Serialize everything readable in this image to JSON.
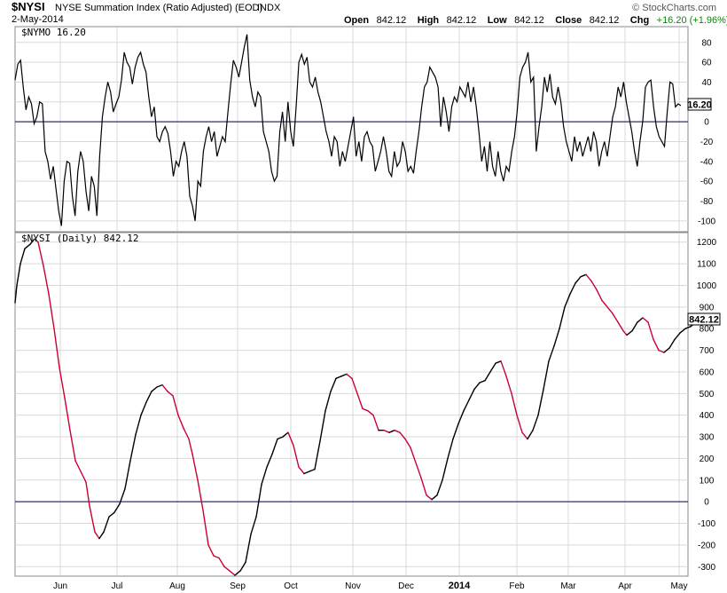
{
  "header": {
    "symbol": "$NYSI",
    "name": "NYSE Summation Index (Ratio Adjusted) (EOD)",
    "exchange": "INDX",
    "date": "2-May-2014",
    "watermark": "© StockCharts.com",
    "open_label": "Open",
    "open": "842.12",
    "high_label": "High",
    "high": "842.12",
    "low_label": "Low",
    "low": "842.12",
    "close_label": "Close",
    "close": "842.12",
    "chg_label": "Chg",
    "chg": "+16.20 (+1.96%)"
  },
  "colors": {
    "line": "#000000",
    "declining": "#cc0033",
    "zero_line": "#000066",
    "grid": "#d9d9d9",
    "chg_positive": "#0a8a0a"
  },
  "chart_data": [
    {
      "type": "line",
      "label": "$NYMO 16.20",
      "series": [
        {
          "name": "$NYMO",
          "last_value": "16.20"
        }
      ],
      "ylim": [
        -110,
        95
      ],
      "ytick_values": [
        80,
        60,
        40,
        20,
        0,
        -20,
        -40,
        -60,
        -80,
        -100
      ],
      "zero_line": true,
      "grid": true,
      "values": [
        42,
        58,
        62,
        35,
        12,
        25,
        18,
        -2,
        5,
        20,
        18,
        -30,
        -40,
        -58,
        -45,
        -68,
        -90,
        -105,
        -60,
        -40,
        -42,
        -75,
        -95,
        -50,
        -30,
        -40,
        -70,
        -90,
        -55,
        -65,
        -95,
        -35,
        5,
        25,
        40,
        30,
        10,
        18,
        25,
        42,
        70,
        60,
        55,
        38,
        55,
        65,
        70,
        58,
        50,
        25,
        5,
        15,
        -15,
        -20,
        -10,
        -5,
        -12,
        -30,
        -55,
        -40,
        -45,
        -30,
        -20,
        -35,
        -75,
        -85,
        -100,
        -60,
        -65,
        -30,
        -15,
        -5,
        -20,
        -10,
        -35,
        -25,
        -15,
        -20,
        10,
        38,
        62,
        55,
        45,
        60,
        75,
        88,
        42,
        25,
        15,
        30,
        25,
        -10,
        -20,
        -30,
        -50,
        -60,
        -55,
        -10,
        10,
        -20,
        20,
        -10,
        -25,
        15,
        60,
        68,
        58,
        65,
        40,
        35,
        45,
        30,
        20,
        5,
        -10,
        -20,
        -35,
        -15,
        -20,
        -45,
        -30,
        -40,
        -25,
        -10,
        5,
        -35,
        -20,
        -40,
        -15,
        -10,
        -20,
        -25,
        -50,
        -40,
        -30,
        -15,
        -30,
        -50,
        -55,
        -30,
        -45,
        -40,
        -20,
        -30,
        -50,
        -45,
        -52,
        -30,
        -10,
        15,
        35,
        40,
        55,
        50,
        45,
        35,
        -5,
        25,
        10,
        -10,
        15,
        25,
        20,
        35,
        30,
        25,
        40,
        20,
        35,
        15,
        -10,
        -40,
        -25,
        -50,
        -20,
        -45,
        -55,
        -30,
        -50,
        -60,
        -45,
        -50,
        -30,
        -15,
        10,
        45,
        55,
        60,
        70,
        40,
        45,
        -30,
        -5,
        15,
        45,
        30,
        48,
        25,
        18,
        35,
        20,
        -5,
        -20,
        -30,
        -40,
        -15,
        -30,
        -20,
        -35,
        -25,
        -15,
        -30,
        -10,
        -20,
        -45,
        -30,
        -20,
        -35,
        -15,
        5,
        15,
        35,
        25,
        40,
        20,
        5,
        -10,
        -30,
        -45,
        -20,
        0,
        35,
        40,
        42,
        15,
        -5,
        -15,
        -20,
        -25,
        10,
        40,
        38,
        15,
        18,
        16.2
      ]
    },
    {
      "type": "line",
      "label": "$NYSI (Daily) 842.12",
      "series": [
        {
          "name": "$NYSI (Daily)",
          "last_value": "842.12"
        }
      ],
      "ylim": [
        -340,
        1240
      ],
      "ytick_values": [
        1200,
        1100,
        1000,
        900,
        800,
        700,
        600,
        500,
        400,
        300,
        200,
        100,
        0,
        -100,
        -200,
        -300
      ],
      "zero_line": true,
      "grid": true,
      "x_labels": [
        "Jun",
        "Jul",
        "Aug",
        "Sep",
        "Oct",
        "Nov",
        "Dec",
        "2014",
        "Feb",
        "Mar",
        "Apr",
        "May"
      ],
      "anchor_points": [
        [
          0,
          920
        ],
        [
          2,
          1000
        ],
        [
          6,
          1100
        ],
        [
          11,
          1170
        ],
        [
          17,
          1190
        ],
        [
          22,
          1215
        ],
        [
          26,
          1200
        ],
        [
          32,
          1090
        ],
        [
          38,
          960
        ],
        [
          44,
          800
        ],
        [
          50,
          620
        ],
        [
          56,
          480
        ],
        [
          62,
          330
        ],
        [
          68,
          190
        ],
        [
          74,
          140
        ],
        [
          80,
          90
        ],
        [
          84,
          -20
        ],
        [
          90,
          -140
        ],
        [
          95,
          -170
        ],
        [
          100,
          -140
        ],
        [
          106,
          -70
        ],
        [
          112,
          -50
        ],
        [
          118,
          -10
        ],
        [
          124,
          60
        ],
        [
          130,
          190
        ],
        [
          136,
          310
        ],
        [
          142,
          400
        ],
        [
          148,
          460
        ],
        [
          154,
          510
        ],
        [
          160,
          530
        ],
        [
          166,
          540
        ],
        [
          172,
          510
        ],
        [
          178,
          490
        ],
        [
          184,
          400
        ],
        [
          190,
          340
        ],
        [
          196,
          290
        ],
        [
          200,
          220
        ],
        [
          206,
          100
        ],
        [
          212,
          -40
        ],
        [
          218,
          -200
        ],
        [
          224,
          -250
        ],
        [
          230,
          -260
        ],
        [
          236,
          -300
        ],
        [
          242,
          -320
        ],
        [
          248,
          -340
        ],
        [
          254,
          -320
        ],
        [
          260,
          -280
        ],
        [
          266,
          -150
        ],
        [
          272,
          -70
        ],
        [
          278,
          80
        ],
        [
          284,
          160
        ],
        [
          290,
          220
        ],
        [
          296,
          290
        ],
        [
          302,
          300
        ],
        [
          308,
          320
        ],
        [
          314,
          260
        ],
        [
          320,
          160
        ],
        [
          326,
          130
        ],
        [
          332,
          140
        ],
        [
          338,
          150
        ],
        [
          344,
          280
        ],
        [
          350,
          420
        ],
        [
          356,
          510
        ],
        [
          362,
          570
        ],
        [
          368,
          580
        ],
        [
          374,
          590
        ],
        [
          380,
          570
        ],
        [
          386,
          500
        ],
        [
          392,
          430
        ],
        [
          398,
          420
        ],
        [
          404,
          400
        ],
        [
          410,
          330
        ],
        [
          416,
          330
        ],
        [
          422,
          320
        ],
        [
          428,
          330
        ],
        [
          434,
          320
        ],
        [
          440,
          290
        ],
        [
          446,
          250
        ],
        [
          452,
          180
        ],
        [
          458,
          110
        ],
        [
          464,
          30
        ],
        [
          470,
          10
        ],
        [
          476,
          30
        ],
        [
          482,
          100
        ],
        [
          488,
          200
        ],
        [
          494,
          290
        ],
        [
          500,
          360
        ],
        [
          506,
          420
        ],
        [
          512,
          470
        ],
        [
          518,
          520
        ],
        [
          524,
          550
        ],
        [
          530,
          560
        ],
        [
          536,
          600
        ],
        [
          542,
          640
        ],
        [
          548,
          650
        ],
        [
          554,
          580
        ],
        [
          560,
          500
        ],
        [
          566,
          400
        ],
        [
          572,
          320
        ],
        [
          578,
          290
        ],
        [
          584,
          330
        ],
        [
          590,
          400
        ],
        [
          596,
          520
        ],
        [
          602,
          650
        ],
        [
          608,
          720
        ],
        [
          614,
          800
        ],
        [
          620,
          900
        ],
        [
          626,
          960
        ],
        [
          632,
          1010
        ],
        [
          638,
          1040
        ],
        [
          644,
          1050
        ],
        [
          650,
          1020
        ],
        [
          656,
          980
        ],
        [
          662,
          930
        ],
        [
          668,
          900
        ],
        [
          674,
          870
        ],
        [
          680,
          830
        ],
        [
          686,
          790
        ],
        [
          690,
          770
        ],
        [
          696,
          790
        ],
        [
          702,
          830
        ],
        [
          708,
          850
        ],
        [
          714,
          830
        ],
        [
          720,
          750
        ],
        [
          726,
          700
        ],
        [
          732,
          690
        ],
        [
          738,
          710
        ],
        [
          744,
          750
        ],
        [
          750,
          780
        ],
        [
          756,
          800
        ],
        [
          762,
          810
        ],
        [
          768,
          830
        ],
        [
          774,
          842.12
        ]
      ]
    }
  ]
}
